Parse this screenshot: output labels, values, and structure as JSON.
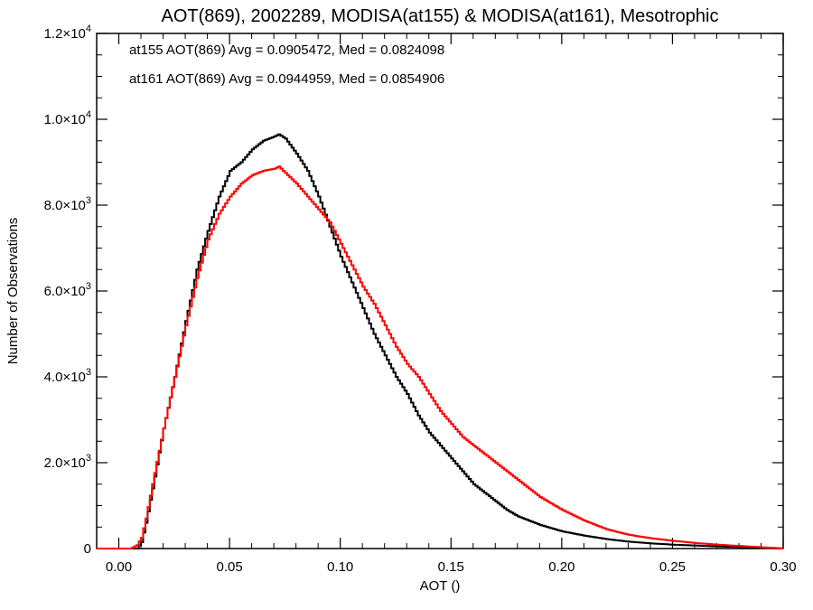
{
  "chart_data": {
    "type": "line",
    "title": "AOT(869), 2002289, MODISA(at155) & MODISA(at161), Mesotrophic",
    "xlabel": "AOT ()",
    "ylabel": "Number of Observations",
    "xlim": [
      -0.01,
      0.3
    ],
    "ylim": [
      0,
      12000
    ],
    "x_ticks": [
      {
        "value": 0.0,
        "label": "0.00"
      },
      {
        "value": 0.05,
        "label": "0.05"
      },
      {
        "value": 0.1,
        "label": "0.10"
      },
      {
        "value": 0.15,
        "label": "0.15"
      },
      {
        "value": 0.2,
        "label": "0.20"
      },
      {
        "value": 0.25,
        "label": "0.25"
      },
      {
        "value": 0.3,
        "label": "0.30"
      }
    ],
    "y_ticks": [
      {
        "value": 0,
        "mantissa": "0",
        "exponent": ""
      },
      {
        "value": 2000,
        "mantissa": "2.0×10",
        "exponent": "3"
      },
      {
        "value": 4000,
        "mantissa": "4.0×10",
        "exponent": "3"
      },
      {
        "value": 6000,
        "mantissa": "6.0×10",
        "exponent": "3"
      },
      {
        "value": 8000,
        "mantissa": "8.0×10",
        "exponent": "3"
      },
      {
        "value": 10000,
        "mantissa": "1.0×10",
        "exponent": "4"
      },
      {
        "value": 12000,
        "mantissa": "1.2×10",
        "exponent": "4"
      }
    ],
    "grid": false,
    "legend_position": "top-left",
    "series": [
      {
        "name": "at155",
        "color": "#000000",
        "legend_text": "at155 AOT(869) Avg = 0.0905472, Med = 0.0824098",
        "x": [
          -0.01,
          0.0,
          0.005,
          0.008,
          0.01,
          0.012,
          0.015,
          0.02,
          0.025,
          0.03,
          0.035,
          0.04,
          0.045,
          0.05,
          0.055,
          0.06,
          0.065,
          0.07,
          0.072,
          0.075,
          0.08,
          0.085,
          0.09,
          0.095,
          0.1,
          0.105,
          0.11,
          0.115,
          0.12,
          0.125,
          0.13,
          0.135,
          0.14,
          0.145,
          0.15,
          0.155,
          0.16,
          0.165,
          0.17,
          0.175,
          0.18,
          0.19,
          0.2,
          0.21,
          0.22,
          0.23,
          0.24,
          0.25,
          0.26,
          0.27,
          0.28,
          0.29,
          0.3
        ],
        "y": [
          0,
          0,
          0,
          0,
          150,
          600,
          1400,
          2800,
          4000,
          5300,
          6500,
          7400,
          8200,
          8800,
          9000,
          9300,
          9500,
          9600,
          9650,
          9550,
          9200,
          8800,
          8200,
          7500,
          6800,
          6200,
          5600,
          5000,
          4500,
          4000,
          3600,
          3100,
          2700,
          2400,
          2100,
          1800,
          1500,
          1300,
          1100,
          900,
          750,
          550,
          400,
          300,
          220,
          160,
          120,
          90,
          70,
          50,
          35,
          20,
          0
        ]
      },
      {
        "name": "at161",
        "color": "#ff0000",
        "legend_text": "at161 AOT(869) Avg = 0.0944959, Med = 0.0854906",
        "x": [
          -0.01,
          0.0,
          0.005,
          0.008,
          0.01,
          0.012,
          0.015,
          0.02,
          0.025,
          0.03,
          0.035,
          0.04,
          0.045,
          0.05,
          0.055,
          0.06,
          0.065,
          0.07,
          0.072,
          0.075,
          0.08,
          0.085,
          0.09,
          0.095,
          0.1,
          0.105,
          0.11,
          0.115,
          0.12,
          0.125,
          0.13,
          0.135,
          0.14,
          0.145,
          0.15,
          0.155,
          0.16,
          0.165,
          0.17,
          0.175,
          0.18,
          0.19,
          0.2,
          0.21,
          0.22,
          0.23,
          0.24,
          0.25,
          0.26,
          0.27,
          0.28,
          0.29,
          0.3
        ],
        "y": [
          0,
          0,
          0,
          80,
          250,
          700,
          1500,
          2800,
          4000,
          5200,
          6300,
          7200,
          7800,
          8200,
          8500,
          8700,
          8800,
          8850,
          8900,
          8750,
          8500,
          8200,
          7900,
          7600,
          7100,
          6600,
          6100,
          5700,
          5200,
          4700,
          4300,
          4000,
          3600,
          3200,
          2900,
          2600,
          2400,
          2200,
          2000,
          1800,
          1600,
          1200,
          900,
          650,
          450,
          320,
          240,
          180,
          130,
          90,
          60,
          30,
          0
        ]
      }
    ]
  }
}
